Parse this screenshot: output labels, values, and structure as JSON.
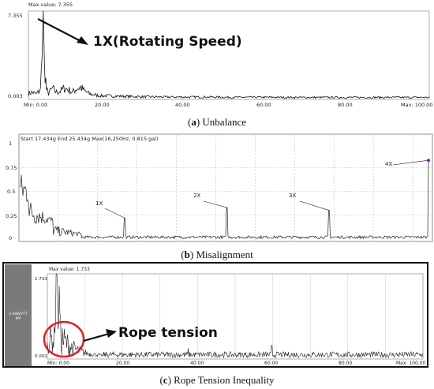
{
  "chart_data": [
    {
      "type": "line",
      "panel": "a",
      "header": "Max value: 7.355",
      "y_ticks": [
        "7.355",
        "0.003"
      ],
      "x_ticks": [
        "Min: 0.00",
        "20.00",
        "40.00",
        "60.00",
        "80.00",
        "Max: 100.00"
      ],
      "xlim": [
        0,
        100
      ],
      "ylim": [
        0.003,
        7.355
      ],
      "annotation": "1X(Rotating Speed)",
      "series": [
        {
          "values_desc": "spectrum",
          "x": [
            0,
            1,
            2,
            3,
            3.4,
            3.7,
            4,
            4.5,
            5,
            6,
            7,
            8,
            9,
            10,
            11,
            12,
            13,
            14,
            15,
            16,
            17,
            18,
            20,
            25,
            30,
            35,
            40,
            45,
            50,
            55,
            60,
            65,
            70,
            75,
            80,
            85,
            90,
            95,
            100
          ],
          "y": [
            0.5,
            0.6,
            0.45,
            0.8,
            3.5,
            7.355,
            3.0,
            0.8,
            0.5,
            0.9,
            0.6,
            0.7,
            0.95,
            0.8,
            0.6,
            0.9,
            1.0,
            0.7,
            0.5,
            0.4,
            0.35,
            0.3,
            0.3,
            0.25,
            0.22,
            0.2,
            0.2,
            0.2,
            0.18,
            0.18,
            0.18,
            0.17,
            0.17,
            0.17,
            0.17,
            0.17,
            0.17,
            0.17,
            0.17
          ]
        }
      ],
      "caption_label": "a",
      "caption_text": "Unbalance"
    },
    {
      "type": "line",
      "panel": "b",
      "header": "Start 17.434g End 25.434g Max(16,250Hz, 0.815 gal)",
      "y_ticks": [
        "1",
        "0.75",
        "0.5",
        "0.25",
        "0"
      ],
      "ylim": [
        0,
        1
      ],
      "xlim": [
        0,
        100
      ],
      "peaks": [
        {
          "label": "1X",
          "x": 25.5,
          "y": 0.22
        },
        {
          "label": "2X",
          "x": 50.5,
          "y": 0.33
        },
        {
          "label": "3X",
          "x": 75.5,
          "y": 0.3
        },
        {
          "label": "4X",
          "x": 100,
          "y": 0.8
        }
      ],
      "caption_label": "b",
      "caption_text": "Misalignment"
    },
    {
      "type": "line",
      "panel": "c",
      "header": "Max value: 1.733",
      "side_label": "2.RAW.FFT gal",
      "y_ticks": [
        "1.733",
        "0.002"
      ],
      "x_ticks": [
        "Min: 0.00",
        "20.00",
        "40.00",
        "60.00",
        "80.00",
        "Max: 100.00"
      ],
      "xlim": [
        0,
        100
      ],
      "ylim": [
        0.002,
        1.733
      ],
      "annotation": "Rope tension",
      "caption_label": "c",
      "caption_text": "Rope Tension Inequality"
    }
  ],
  "colors": {
    "accent_red": "#e02020",
    "marker_purple": "#b000d0",
    "grid": "#bdbdbd"
  }
}
